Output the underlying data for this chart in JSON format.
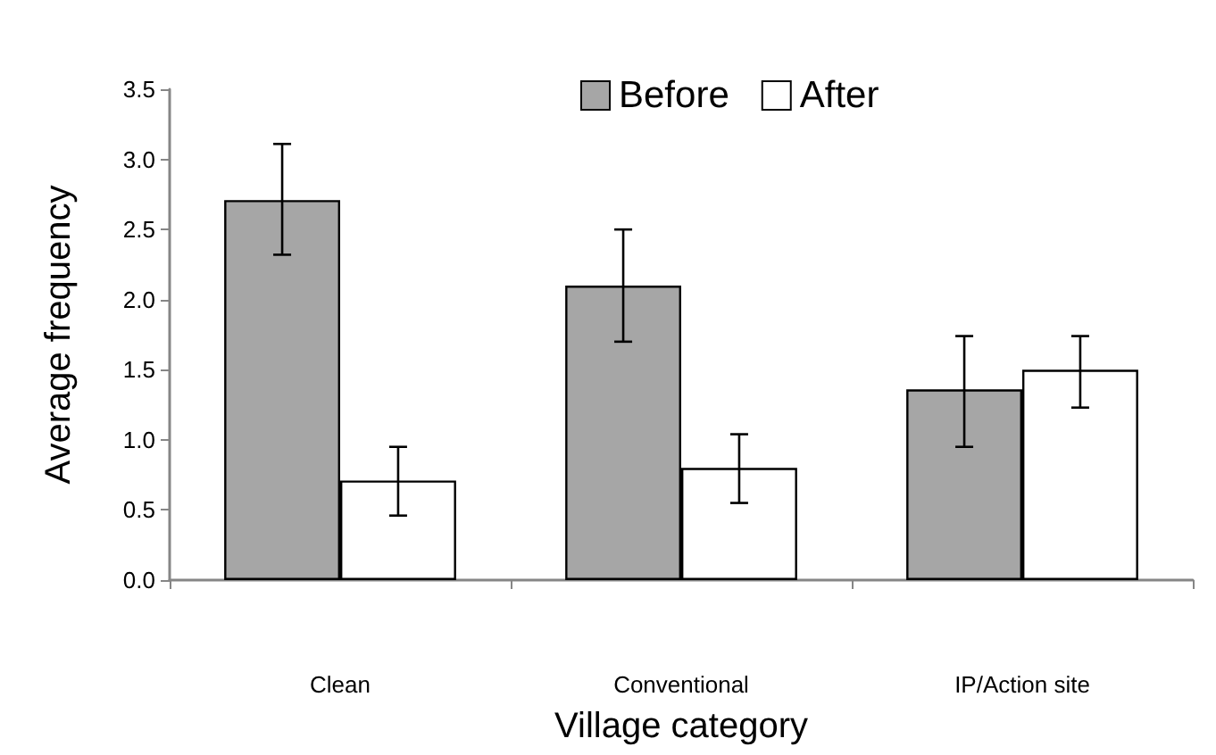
{
  "chart_data": {
    "type": "bar",
    "xlabel": "Village category",
    "ylabel": "Average frequency",
    "categories": [
      "Clean",
      "Conventional",
      "IP/Action site"
    ],
    "series": [
      {
        "name": "Before",
        "color": "#a6a6a6",
        "values": [
          2.71,
          2.1,
          1.36
        ],
        "errors": [
          [
            2.32,
            3.11
          ],
          [
            1.7,
            2.5
          ],
          [
            0.95,
            1.74
          ]
        ]
      },
      {
        "name": "After",
        "color": "#ffffff",
        "values": [
          0.71,
          0.8,
          1.5
        ],
        "errors": [
          [
            0.46,
            0.95
          ],
          [
            0.55,
            1.04
          ],
          [
            1.23,
            1.74
          ]
        ]
      }
    ],
    "ylim": [
      0,
      3.5
    ],
    "yticks": [
      {
        "value": 0,
        "label": "0.0"
      },
      {
        "value": 0.5,
        "label": "0.5"
      },
      {
        "value": 1,
        "label": "1.0"
      },
      {
        "value": 1.5,
        "label": "1.5"
      },
      {
        "value": 2,
        "label": "2.0"
      },
      {
        "value": 2.5,
        "label": "2.5"
      },
      {
        "value": 3,
        "label": "3.0"
      },
      {
        "value": 3.5,
        "label": "3.5"
      }
    ],
    "grid": false,
    "legend": "top"
  }
}
